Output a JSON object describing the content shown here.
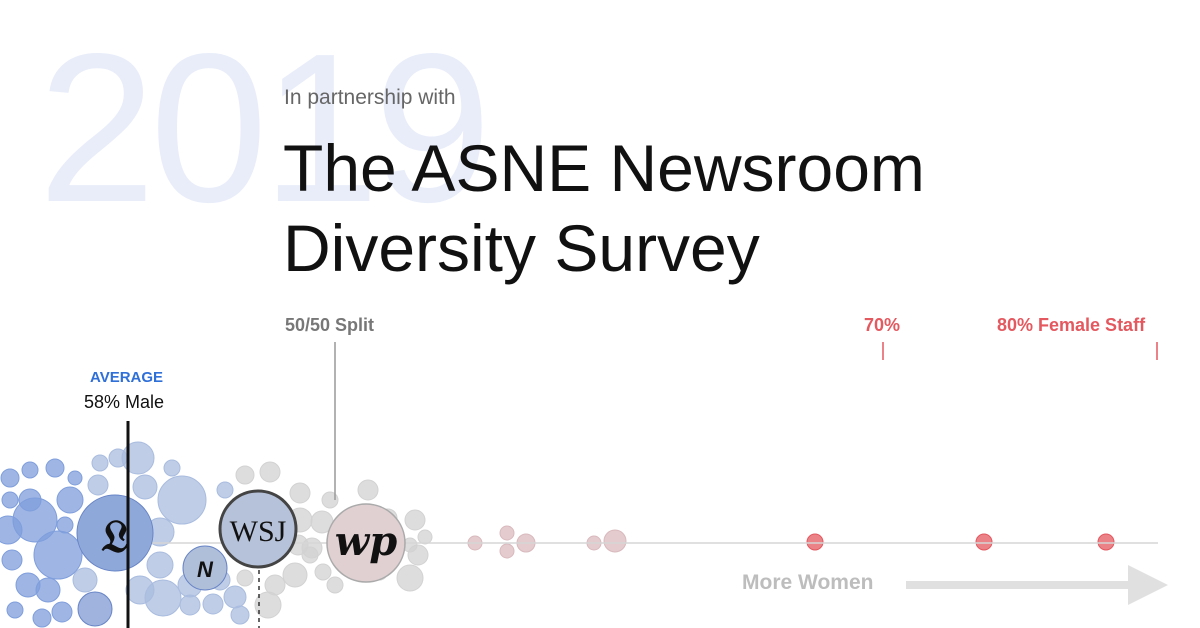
{
  "year": "2019",
  "partnership": "In partnership with",
  "title_line1": "The ASNE Newsroom",
  "title_line2": "Diversity Survey",
  "labels": {
    "split": "50/50 Split",
    "p70": "70%",
    "p80": "80% Female Staff",
    "average": "AVERAGE",
    "average_value": "58% Male",
    "more_women": "More Women"
  },
  "logos": [
    "𝔏",
    "WSJ",
    "N",
    "wp",
    "𝔆"
  ],
  "colors": {
    "male": "#7f9edc",
    "female": "#e4585f",
    "neutral": "#cccccc",
    "accent": "#2f6fd8"
  },
  "chart_data": {
    "type": "scatter",
    "x_axis": "female_share",
    "markers": [
      {
        "label": "AVERAGE",
        "value": "58% Male"
      },
      {
        "label": "50/50 Split"
      },
      {
        "label": "70%"
      },
      {
        "label": "80% Female Staff"
      }
    ],
    "annotation": "More Women"
  }
}
